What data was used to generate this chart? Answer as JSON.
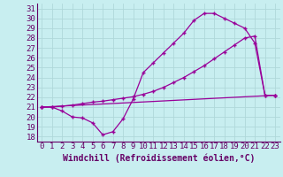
{
  "title": "",
  "xlabel": "Windchill (Refroidissement éolien,°C)",
  "bg_color": "#c8eef0",
  "grid_color": "#b0d8da",
  "line_color": "#990099",
  "xlim": [
    -0.5,
    23.5
  ],
  "ylim": [
    17.5,
    31.5
  ],
  "xticks": [
    0,
    1,
    2,
    3,
    4,
    5,
    6,
    7,
    8,
    9,
    10,
    11,
    12,
    13,
    14,
    15,
    16,
    17,
    18,
    19,
    20,
    21,
    22,
    23
  ],
  "yticks": [
    18,
    19,
    20,
    21,
    22,
    23,
    24,
    25,
    26,
    27,
    28,
    29,
    30,
    31
  ],
  "line1_x": [
    0,
    1,
    2,
    3,
    4,
    5,
    6,
    7,
    8,
    9,
    10,
    11,
    12,
    13,
    14,
    15,
    16,
    17,
    18,
    19,
    20,
    21,
    22,
    23
  ],
  "line1_y": [
    21.0,
    21.0,
    20.6,
    20.0,
    19.9,
    19.4,
    18.2,
    18.5,
    19.8,
    21.8,
    24.5,
    25.5,
    26.5,
    27.5,
    28.5,
    29.8,
    30.5,
    30.5,
    30.0,
    29.5,
    29.0,
    27.5,
    22.2,
    22.2
  ],
  "line2_x": [
    0,
    1,
    2,
    3,
    4,
    5,
    6,
    7,
    8,
    9,
    10,
    11,
    12,
    13,
    14,
    15,
    16,
    17,
    18,
    19,
    20,
    21,
    22,
    23
  ],
  "line2_y": [
    21.0,
    21.0,
    21.1,
    21.2,
    21.35,
    21.5,
    21.6,
    21.75,
    21.9,
    22.05,
    22.3,
    22.6,
    23.0,
    23.5,
    24.0,
    24.6,
    25.2,
    25.9,
    26.6,
    27.3,
    28.0,
    28.2,
    22.2,
    22.2
  ],
  "line3_x": [
    0,
    23
  ],
  "line3_y": [
    21.0,
    22.2
  ],
  "font_size": 6.5,
  "xlabel_fontsize": 7.0
}
